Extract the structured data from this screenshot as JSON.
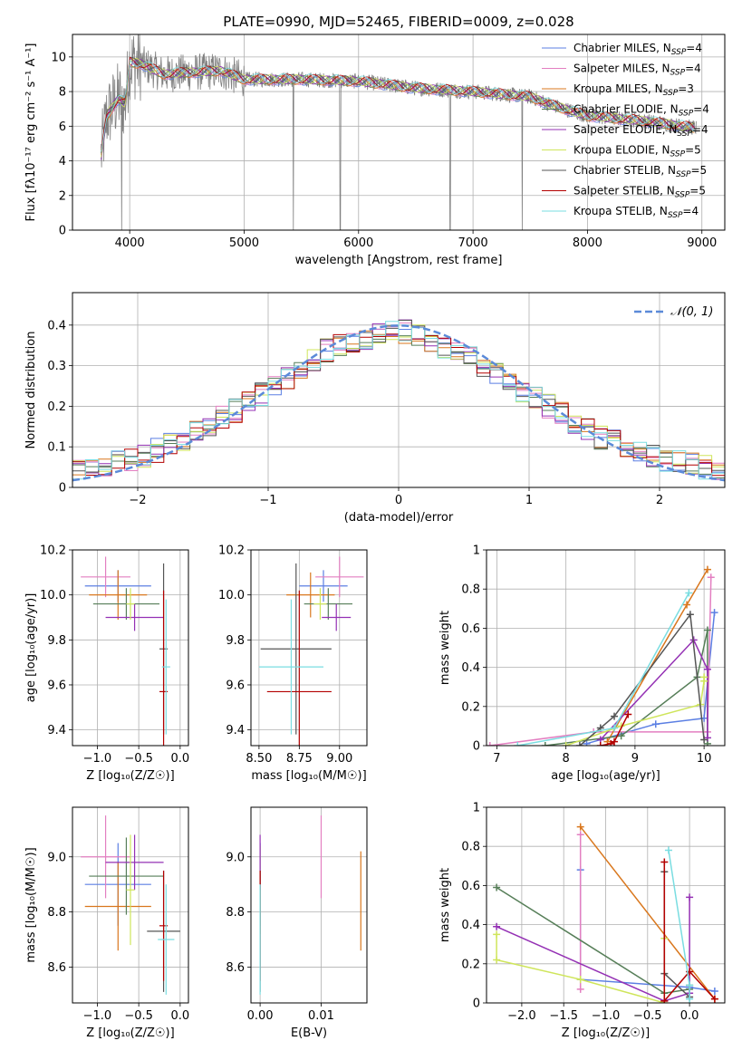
{
  "figure_title": "PLATE=0990, MJD=52465, FIBERID=0009, z=0.028",
  "colors": {
    "chab_miles": "#5b7fe3",
    "salp_miles": "#e37fc1",
    "krou_miles": "#d9771d",
    "chab_elodie": "#567e58",
    "salp_elodie": "#9430b4",
    "krou_elodie": "#cfe55b",
    "chab_stelib": "#555555",
    "salp_stelib": "#b30000",
    "krou_stelib": "#7adde1",
    "data": "#808080",
    "normal": "#5b8ad8",
    "grid": "#b0b0b0"
  },
  "series_labels": [
    {
      "key": "chab_miles",
      "name": "Chabrier MILES, N",
      "sub": "SSP",
      "eq": "=4"
    },
    {
      "key": "salp_miles",
      "name": "Salpeter MILES, N",
      "sub": "SSP",
      "eq": "=4"
    },
    {
      "key": "krou_miles",
      "name": "Kroupa MILES, N",
      "sub": "SSP",
      "eq": "=3"
    },
    {
      "key": "chab_elodie",
      "name": "Chabrier ELODIE, N",
      "sub": "SSP",
      "eq": "=4"
    },
    {
      "key": "salp_elodie",
      "name": "Salpeter ELODIE, N",
      "sub": "SSP",
      "eq": "=4"
    },
    {
      "key": "krou_elodie",
      "name": "Kroupa ELODIE, N",
      "sub": "SSP",
      "eq": "=5"
    },
    {
      "key": "chab_stelib",
      "name": "Chabrier STELIB, N",
      "sub": "SSP",
      "eq": "=5"
    },
    {
      "key": "salp_stelib",
      "name": "Salpeter STELIB, N",
      "sub": "SSP",
      "eq": "=5"
    },
    {
      "key": "krou_stelib",
      "name": "Kroupa STELIB, N",
      "sub": "SSP",
      "eq": "=4"
    }
  ],
  "chart_data": [
    {
      "id": "spectrum",
      "type": "line",
      "xlabel": "wavelength [Angstrom, rest frame]",
      "ylabel": "Flux [fλ10⁻¹⁷ erg cm⁻² s⁻¹ A⁻¹]",
      "xlim": [
        3500,
        9200
      ],
      "ylim": [
        0,
        11.3
      ],
      "xticks": [
        4000,
        5000,
        6000,
        7000,
        8000,
        9000
      ],
      "yticks": [
        0,
        2,
        4,
        6,
        8,
        10
      ],
      "continuum": {
        "wavelength": [
          3750,
          3800,
          3900,
          3960,
          4000,
          4100,
          4300,
          4500,
          4800,
          5000,
          5500,
          6000,
          6500,
          7000,
          7500,
          7700,
          8000,
          8500,
          8950
        ],
        "flux": [
          4.3,
          6.6,
          7.6,
          7.3,
          9.7,
          9.6,
          9.0,
          9.1,
          9.2,
          8.7,
          8.7,
          8.6,
          8.2,
          8.0,
          7.7,
          7.2,
          6.6,
          6.3,
          5.9
        ]
      },
      "dropouts": [
        {
          "wavelength": 3930,
          "flux": 0.0
        },
        {
          "wavelength": 5430,
          "flux": 0.0
        },
        {
          "wavelength": 5840,
          "flux": 0.0
        },
        {
          "wavelength": 6800,
          "flux": 0.0
        },
        {
          "wavelength": 7430,
          "flux": 0.0
        }
      ],
      "legend": "top-right"
    },
    {
      "id": "residuals",
      "type": "step",
      "xlabel": "(data-model)/error",
      "ylabel": "Normed distribution",
      "xlim": [
        -2.5,
        2.5
      ],
      "ylim": [
        0,
        0.48
      ],
      "xticks": [
        -2,
        -1,
        0,
        1,
        2
      ],
      "yticks": [
        0.0,
        0.1,
        0.2,
        0.3,
        0.4
      ],
      "legend_label": "𝒩(0, 1)",
      "legend": "top-right",
      "bin_width": 0.1,
      "envelope": {
        "x": [
          -2.5,
          -2.0,
          -1.5,
          -1.0,
          -0.5,
          0.0,
          0.5,
          1.0,
          1.5,
          2.0,
          2.5
        ],
        "y": [
          0.04,
          0.07,
          0.14,
          0.24,
          0.35,
          0.39,
          0.33,
          0.23,
          0.13,
          0.07,
          0.04
        ]
      }
    },
    {
      "id": "age_vs_Z",
      "type": "errorbar",
      "xlabel": "Z [log₁₀(Z/Z☉)]",
      "ylabel": "age  [log₁₀(age/yr)]",
      "xlim": [
        -1.3,
        0.1
      ],
      "ylim": [
        9.33,
        10.2
      ],
      "xticks": [
        -1.0,
        -0.5,
        0.0
      ],
      "xticklabels": [
        "−1.0",
        "−0.5",
        "0.0"
      ],
      "yticks": [
        9.4,
        9.6,
        9.8,
        10.0,
        10.2
      ],
      "yticklabels": [
        "9.4",
        "9.6",
        "9.8",
        "10.0",
        "10.2"
      ],
      "points": [
        {
          "key": "chab_miles",
          "x": -0.75,
          "y": 10.04,
          "xerr": 0.4,
          "yerr": 0.07
        },
        {
          "key": "salp_miles",
          "x": -0.9,
          "y": 10.08,
          "xerr": 0.3,
          "yerr": 0.09
        },
        {
          "key": "krou_miles",
          "x": -0.75,
          "y": 10.0,
          "xerr": 0.35,
          "yerr": 0.11
        },
        {
          "key": "chab_elodie",
          "x": -0.65,
          "y": 9.96,
          "xerr": 0.4,
          "yerr": 0.07
        },
        {
          "key": "salp_elodie",
          "x": -0.55,
          "y": 9.9,
          "xerr": 0.35,
          "yerr": 0.06
        },
        {
          "key": "krou_elodie",
          "x": -0.6,
          "y": 9.96,
          "xerr": 0.05,
          "yerr": 0.07
        },
        {
          "key": "chab_stelib",
          "x": -0.2,
          "y": 9.76,
          "xerr": 0.05,
          "yerr": 0.38
        },
        {
          "key": "salp_stelib",
          "x": -0.2,
          "y": 9.57,
          "xerr": 0.05,
          "yerr": 0.45
        },
        {
          "key": "krou_stelib",
          "x": -0.17,
          "y": 9.68,
          "xerr": 0.05,
          "yerr": 0.3
        }
      ]
    },
    {
      "id": "age_vs_mass",
      "type": "errorbar",
      "xlabel": "mass [log₁₀(M/M☉)]",
      "ylabel": "",
      "xlim": [
        8.45,
        9.17
      ],
      "ylim": [
        9.33,
        10.2
      ],
      "xticks": [
        8.5,
        8.75,
        9.0
      ],
      "xticklabels": [
        "8.50",
        "8.75",
        "9.00"
      ],
      "yticks": [
        9.4,
        9.6,
        9.8,
        10.0,
        10.2
      ],
      "yticklabels": [
        "9.4",
        "9.6",
        "9.8",
        "10.0",
        "10.2"
      ],
      "points": [
        {
          "key": "chab_miles",
          "x": 8.9,
          "y": 10.04,
          "xerr": 0.15,
          "yerr": 0.07
        },
        {
          "key": "salp_miles",
          "x": 9.0,
          "y": 10.08,
          "xerr": 0.15,
          "yerr": 0.09
        },
        {
          "key": "krou_miles",
          "x": 8.82,
          "y": 10.0,
          "xerr": 0.15,
          "yerr": 0.1
        },
        {
          "key": "chab_elodie",
          "x": 8.93,
          "y": 9.96,
          "xerr": 0.15,
          "yerr": 0.07
        },
        {
          "key": "salp_elodie",
          "x": 8.98,
          "y": 9.9,
          "xerr": 0.09,
          "yerr": 0.06
        },
        {
          "key": "krou_elodie",
          "x": 8.88,
          "y": 9.96,
          "xerr": 0.04,
          "yerr": 0.07
        },
        {
          "key": "chab_stelib",
          "x": 8.73,
          "y": 9.76,
          "xerr": 0.22,
          "yerr": 0.38
        },
        {
          "key": "salp_stelib",
          "x": 8.75,
          "y": 9.57,
          "xerr": 0.2,
          "yerr": 0.45
        },
        {
          "key": "krou_stelib",
          "x": 8.7,
          "y": 9.68,
          "xerr": 0.2,
          "yerr": 0.3
        }
      ]
    },
    {
      "id": "weight_vs_age",
      "type": "line",
      "xlabel": "age  [log₁₀(age/yr)]",
      "ylabel": "mass weight",
      "xlim": [
        6.85,
        10.3
      ],
      "ylim": [
        0,
        1
      ],
      "xticks": [
        7,
        8,
        9,
        10
      ],
      "yticks": [
        0.0,
        0.2,
        0.4,
        0.6,
        0.8,
        1.0
      ],
      "series": [
        {
          "key": "chab_miles",
          "x": [
            8.3,
            9.3,
            10.0,
            10.15
          ],
          "y": [
            0.01,
            0.11,
            0.14,
            0.68
          ]
        },
        {
          "key": "salp_miles",
          "x": [
            6.9,
            8.4,
            10.05,
            10.1
          ],
          "y": [
            0.0,
            0.07,
            0.07,
            0.86
          ]
        },
        {
          "key": "krou_miles",
          "x": [
            8.6,
            9.75,
            10.05
          ],
          "y": [
            0.02,
            0.72,
            0.9
          ]
        },
        {
          "key": "chab_elodie",
          "x": [
            7.7,
            8.8,
            9.9,
            10.05,
            10.05
          ],
          "y": [
            0.0,
            0.05,
            0.35,
            0.59,
            0.01
          ]
        },
        {
          "key": "salp_elodie",
          "x": [
            8.5,
            9.85,
            10.05,
            10.05
          ],
          "y": [
            0.03,
            0.54,
            0.39,
            0.04
          ]
        },
        {
          "key": "krou_elodie",
          "x": [
            8.0,
            8.8,
            9.95,
            10.0,
            10.0
          ],
          "y": [
            0.0,
            0.1,
            0.21,
            0.33,
            0.35
          ]
        },
        {
          "key": "chab_stelib",
          "x": [
            8.2,
            8.5,
            8.7,
            9.8,
            10.0
          ],
          "y": [
            0.0,
            0.09,
            0.15,
            0.67,
            0.03
          ]
        },
        {
          "key": "salp_stelib",
          "x": [
            8.5,
            8.65,
            8.7,
            8.9
          ],
          "y": [
            0.0,
            0.01,
            0.02,
            0.16
          ]
        },
        {
          "key": "krou_stelib",
          "x": [
            7.3,
            8.7,
            9.78
          ],
          "y": [
            0.0,
            0.09,
            0.78
          ]
        }
      ]
    },
    {
      "id": "mass_vs_Z",
      "type": "errorbar",
      "xlabel": "Z [log₁₀(Z/Z☉)]",
      "ylabel": "mass [log₁₀(M/M☉)]",
      "xlim": [
        -1.3,
        0.1
      ],
      "ylim": [
        8.47,
        9.18
      ],
      "xticks": [
        -1.0,
        -0.5,
        0.0
      ],
      "xticklabels": [
        "−1.0",
        "−0.5",
        "0.0"
      ],
      "yticks": [
        8.6,
        8.8,
        9.0
      ],
      "yticklabels": [
        "8.6",
        "8.8",
        "9.0"
      ],
      "points": [
        {
          "key": "chab_miles",
          "x": -0.75,
          "y": 8.9,
          "xerr": 0.4,
          "yerr": 0.15
        },
        {
          "key": "salp_miles",
          "x": -0.9,
          "y": 9.0,
          "xerr": 0.3,
          "yerr": 0.15
        },
        {
          "key": "krou_miles",
          "x": -0.75,
          "y": 8.82,
          "xerr": 0.4,
          "yerr": 0.16
        },
        {
          "key": "chab_elodie",
          "x": -0.65,
          "y": 8.93,
          "xerr": 0.45,
          "yerr": 0.14
        },
        {
          "key": "salp_elodie",
          "x": -0.55,
          "y": 8.98,
          "xerr": 0.35,
          "yerr": 0.1
        },
        {
          "key": "krou_elodie",
          "x": -0.6,
          "y": 8.88,
          "xerr": 0.05,
          "yerr": 0.2
        },
        {
          "key": "chab_stelib",
          "x": -0.2,
          "y": 8.73,
          "xerr": 0.2,
          "yerr": 0.22
        },
        {
          "key": "salp_stelib",
          "x": -0.2,
          "y": 8.75,
          "xerr": 0.05,
          "yerr": 0.2
        },
        {
          "key": "krou_stelib",
          "x": -0.17,
          "y": 8.7,
          "xerr": 0.1,
          "yerr": 0.2
        }
      ]
    },
    {
      "id": "mass_vs_ebv",
      "type": "errorbar",
      "xlabel": "E(B-V)",
      "ylabel": "",
      "xlim": [
        -0.0015,
        0.0175
      ],
      "ylim": [
        8.47,
        9.18
      ],
      "xticks": [
        0.0,
        0.01
      ],
      "xticklabels": [
        "0.00",
        "0.01"
      ],
      "yticks": [
        8.6,
        8.8,
        9.0
      ],
      "yticklabels": [
        "8.6",
        "8.8",
        "9.0"
      ],
      "points": [
        {
          "key": "chab_miles",
          "x": 0.0,
          "y": 8.9,
          "xerr": 0,
          "yerr": 0.15
        },
        {
          "key": "krou_elodie",
          "x": 0.0,
          "y": 8.88,
          "xerr": 0,
          "yerr": 0.16
        },
        {
          "key": "salp_elodie",
          "x": 0.0,
          "y": 8.98,
          "xerr": 0,
          "yerr": 0.1
        },
        {
          "key": "chab_stelib",
          "x": 0.0,
          "y": 8.73,
          "xerr": 0,
          "yerr": 0.22
        },
        {
          "key": "salp_stelib",
          "x": 0.0,
          "y": 8.75,
          "xerr": 0,
          "yerr": 0.2
        },
        {
          "key": "krou_stelib",
          "x": 0.0,
          "y": 8.7,
          "xerr": 0,
          "yerr": 0.2
        },
        {
          "key": "salp_miles",
          "x": 0.01,
          "y": 9.0,
          "xerr": 0,
          "yerr": 0.15
        },
        {
          "key": "krou_miles",
          "x": 0.0165,
          "y": 8.84,
          "xerr": 0,
          "yerr": 0.18
        }
      ]
    },
    {
      "id": "weight_vs_Z",
      "type": "line",
      "xlabel": "Z [log₁₀(Z/Z☉)]",
      "ylabel": "mass weight",
      "xlim": [
        -2.42,
        0.42
      ],
      "ylim": [
        0,
        1
      ],
      "xticks": [
        -2.0,
        -1.5,
        -1.0,
        -0.5,
        0.0
      ],
      "xticklabels": [
        "−2.0",
        "−1.5",
        "−1.0",
        "−0.5",
        "0.0"
      ],
      "yticks": [
        0.0,
        0.2,
        0.4,
        0.6,
        0.8,
        1.0
      ],
      "series": [
        {
          "key": "chab_miles",
          "x": [
            -1.3,
            -1.3,
            0.0,
            0.3
          ],
          "y": [
            0.68,
            0.12,
            0.08,
            0.06
          ]
        },
        {
          "key": "salp_miles",
          "x": [
            -1.3,
            -1.3
          ],
          "y": [
            0.86,
            0.07
          ]
        },
        {
          "key": "krou_miles",
          "x": [
            -1.3,
            0.3
          ],
          "y": [
            0.9,
            0.02
          ]
        },
        {
          "key": "chab_elodie",
          "x": [
            -2.3,
            -0.3,
            0.0,
            0.0
          ],
          "y": [
            0.59,
            0.05,
            0.07,
            0.09
          ]
        },
        {
          "key": "salp_elodie",
          "x": [
            -2.3,
            -0.3,
            0.0,
            0.0
          ],
          "y": [
            0.39,
            0.01,
            0.05,
            0.54
          ]
        },
        {
          "key": "krou_elodie",
          "x": [
            -2.3,
            -2.3,
            -1.3,
            -0.3,
            -0.3
          ],
          "y": [
            0.35,
            0.22,
            0.12,
            0.0,
            0.33
          ]
        },
        {
          "key": "chab_stelib",
          "x": [
            -0.3,
            -0.3,
            0.0
          ],
          "y": [
            0.67,
            0.15,
            0.03
          ]
        },
        {
          "key": "salp_stelib",
          "x": [
            -0.3,
            -0.3,
            0.0,
            0.3
          ],
          "y": [
            0.72,
            0.01,
            0.16,
            0.02
          ]
        },
        {
          "key": "krou_stelib",
          "x": [
            -0.25,
            0.0,
            0.0
          ],
          "y": [
            0.78,
            0.09,
            0.02
          ]
        }
      ]
    }
  ]
}
